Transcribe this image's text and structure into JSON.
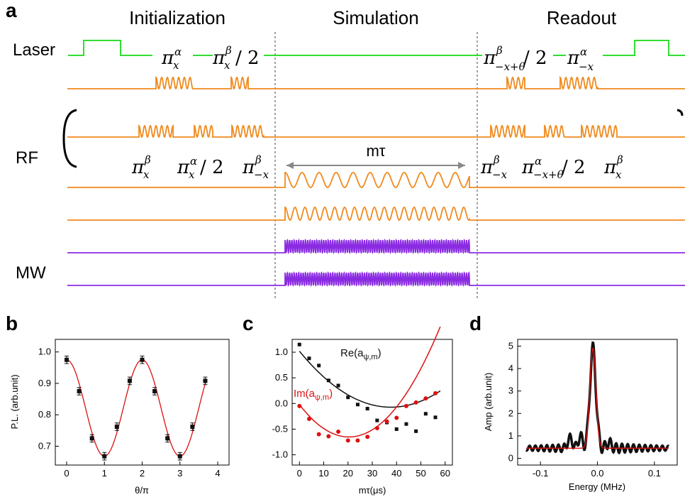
{
  "panel_a": {
    "letter": "a",
    "sections": [
      "Initialization",
      "Simulation",
      "Readout"
    ],
    "row_labels": {
      "laser": "Laser",
      "rf": "RF",
      "mw": "MW"
    },
    "duration_label": "mτ",
    "colors": {
      "laser": "#33dd33",
      "rf": "#f08a1e",
      "mw": "#8a2be2",
      "arrow": "#888888"
    }
  },
  "chart_data": [
    {
      "panel": "b",
      "type": "scatter",
      "xlabel": "θ/π",
      "ylabel": "P.L. (arb.unit)",
      "xlim": [
        -0.3,
        4.3
      ],
      "ylim": [
        0.64,
        1.04
      ],
      "xticks": [
        "0",
        "1",
        "2",
        "3",
        "4"
      ],
      "yticks": [
        "0.7",
        "0.8",
        "0.9",
        "1.0"
      ],
      "series": [
        {
          "x": [
            0,
            0.33,
            0.67,
            1.0,
            1.33,
            1.67,
            2.0,
            2.33,
            2.67,
            3.0,
            3.33,
            3.67
          ],
          "y": [
            0.975,
            0.875,
            0.725,
            0.668,
            0.762,
            0.908,
            0.975,
            0.875,
            0.725,
            0.668,
            0.762,
            0.908
          ],
          "err": 0.012,
          "color": "#111111",
          "fit_color": "#dd1111"
        }
      ]
    },
    {
      "panel": "c",
      "type": "scatter",
      "xlabel": "mτ(μs)",
      "ylabel": "",
      "xlim": [
        -3,
        63
      ],
      "ylim": [
        -1.2,
        1.25
      ],
      "xticks": [
        "0",
        "10",
        "20",
        "30",
        "40",
        "50",
        "60"
      ],
      "yticks": [
        "-1.0",
        "-0.5",
        "0.0",
        "0.5",
        "1.0"
      ],
      "series": [
        {
          "name": "Re(aψ,m)",
          "color": "#111111",
          "x": [
            0,
            4,
            8,
            12,
            16,
            20,
            24,
            28,
            32,
            36,
            40,
            44,
            48,
            52,
            56
          ],
          "y": [
            1.15,
            0.88,
            0.74,
            0.45,
            0.35,
            0.12,
            -0.02,
            -0.1,
            -0.33,
            -0.37,
            -0.5,
            -0.4,
            -0.54,
            -0.2,
            -0.27
          ]
        },
        {
          "name": "Im(aψ,m)",
          "color": "#dd1111",
          "x": [
            0,
            4,
            8,
            12,
            16,
            20,
            24,
            28,
            32,
            36,
            40,
            44,
            48,
            52,
            56
          ],
          "y": [
            -0.05,
            -0.3,
            -0.6,
            -0.64,
            -0.55,
            -0.72,
            -0.72,
            -0.65,
            -0.48,
            -0.35,
            -0.28,
            -0.05,
            0.02,
            0.1,
            0.2
          ]
        }
      ]
    },
    {
      "panel": "d",
      "type": "line",
      "xlabel": "Energy (MHz)",
      "ylabel": "Amp (arb.unit)",
      "xlim": [
        -0.14,
        0.14
      ],
      "ylim": [
        -0.3,
        5.3
      ],
      "xticks": [
        "-0.1",
        "0.0",
        "0.1"
      ],
      "yticks": [
        "0",
        "1",
        "2",
        "3",
        "4",
        "5"
      ],
      "series": [
        {
          "color": "#111111"
        },
        {
          "color": "#dd1111"
        }
      ]
    }
  ]
}
